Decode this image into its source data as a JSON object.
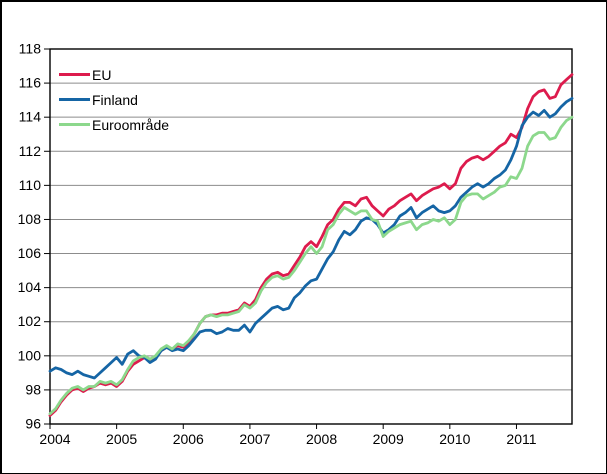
{
  "chart_data": {
    "type": "line",
    "title": "",
    "xlabel": "",
    "ylabel": "",
    "frequency": "monthly",
    "x_start": "2004-01",
    "x_end": "2011-11",
    "x_tick_labels": [
      "2004",
      "2005",
      "2006",
      "2007",
      "2008",
      "2009",
      "2010",
      "2011"
    ],
    "y_ticks": [
      96,
      98,
      100,
      102,
      104,
      106,
      108,
      110,
      112,
      114,
      116,
      118
    ],
    "y_tick_labels": [
      "96",
      "98",
      "100",
      "102",
      "104",
      "106",
      "108",
      "110",
      "112",
      "114",
      "116",
      "118"
    ],
    "ylim": [
      96,
      118
    ],
    "grid": "horizontal",
    "legend_position": "top-left-inside",
    "colors": {
      "axis": "#000000",
      "gridline": "#8c8c8c",
      "background": "#ffffff"
    },
    "series": [
      {
        "name": "EU",
        "color": "#dd1b4d",
        "values": [
          96.5,
          96.8,
          97.3,
          97.7,
          98.0,
          98.1,
          97.9,
          98.1,
          98.2,
          98.4,
          98.3,
          98.4,
          98.2,
          98.5,
          99.1,
          99.5,
          99.7,
          99.9,
          99.7,
          99.9,
          100.3,
          100.5,
          100.4,
          100.6,
          100.5,
          100.8,
          101.3,
          101.9,
          102.3,
          102.4,
          102.4,
          102.5,
          102.5,
          102.6,
          102.7,
          103.1,
          102.9,
          103.3,
          104.0,
          104.5,
          104.8,
          104.9,
          104.7,
          104.8,
          105.3,
          105.8,
          106.4,
          106.7,
          106.4,
          107.0,
          107.7,
          108.0,
          108.6,
          109.0,
          109.0,
          108.8,
          109.2,
          109.3,
          108.8,
          108.5,
          108.2,
          108.6,
          108.8,
          109.1,
          109.3,
          109.5,
          109.1,
          109.4,
          109.6,
          109.8,
          109.9,
          110.1,
          109.8,
          110.1,
          111.0,
          111.4,
          111.6,
          111.7,
          111.5,
          111.7,
          112.0,
          112.3,
          112.5,
          113.0,
          112.8,
          113.4,
          114.5,
          115.2,
          115.5,
          115.6,
          115.1,
          115.2,
          115.9,
          116.2,
          116.5
        ]
      },
      {
        "name": "Finland",
        "color": "#1565a5",
        "values": [
          99.1,
          99.3,
          99.2,
          99.0,
          98.9,
          99.1,
          98.9,
          98.8,
          98.7,
          99.0,
          99.3,
          99.6,
          99.9,
          99.5,
          100.1,
          100.3,
          100.0,
          99.9,
          99.6,
          99.8,
          100.3,
          100.5,
          100.3,
          100.4,
          100.3,
          100.6,
          101.0,
          101.4,
          101.5,
          101.5,
          101.3,
          101.4,
          101.6,
          101.5,
          101.5,
          101.8,
          101.4,
          101.9,
          102.2,
          102.5,
          102.8,
          102.9,
          102.7,
          102.8,
          103.4,
          103.7,
          104.1,
          104.4,
          104.5,
          105.1,
          105.7,
          106.1,
          106.8,
          107.3,
          107.1,
          107.4,
          107.9,
          108.1,
          108.0,
          107.7,
          107.2,
          107.4,
          107.7,
          108.2,
          108.4,
          108.7,
          108.1,
          108.4,
          108.6,
          108.8,
          108.5,
          108.4,
          108.5,
          108.8,
          109.3,
          109.6,
          109.9,
          110.1,
          109.9,
          110.1,
          110.4,
          110.6,
          110.9,
          111.5,
          112.3,
          113.5,
          114.0,
          114.3,
          114.1,
          114.4,
          114.0,
          114.2,
          114.6,
          114.9,
          115.1
        ]
      },
      {
        "name": "Euroområde",
        "color": "#8cd88c",
        "values": [
          96.6,
          96.9,
          97.4,
          97.8,
          98.1,
          98.2,
          98.0,
          98.2,
          98.2,
          98.5,
          98.4,
          98.5,
          98.3,
          98.6,
          99.2,
          99.7,
          99.9,
          100.0,
          99.8,
          100.0,
          100.4,
          100.6,
          100.4,
          100.7,
          100.6,
          100.9,
          101.3,
          101.9,
          102.3,
          102.4,
          102.3,
          102.4,
          102.4,
          102.5,
          102.6,
          103.0,
          102.8,
          103.1,
          103.8,
          104.3,
          104.6,
          104.7,
          104.5,
          104.6,
          105.0,
          105.5,
          106.0,
          106.4,
          106.0,
          106.4,
          107.4,
          107.7,
          108.3,
          108.7,
          108.5,
          108.3,
          108.5,
          108.5,
          108.0,
          107.9,
          107.0,
          107.3,
          107.5,
          107.7,
          107.8,
          107.9,
          107.4,
          107.7,
          107.8,
          108.0,
          107.9,
          108.1,
          107.7,
          108.0,
          109.0,
          109.4,
          109.5,
          109.5,
          109.2,
          109.4,
          109.6,
          109.9,
          110.0,
          110.5,
          110.4,
          111.0,
          112.3,
          112.9,
          113.1,
          113.1,
          112.7,
          112.8,
          113.4,
          113.8,
          114.0
        ]
      }
    ]
  }
}
